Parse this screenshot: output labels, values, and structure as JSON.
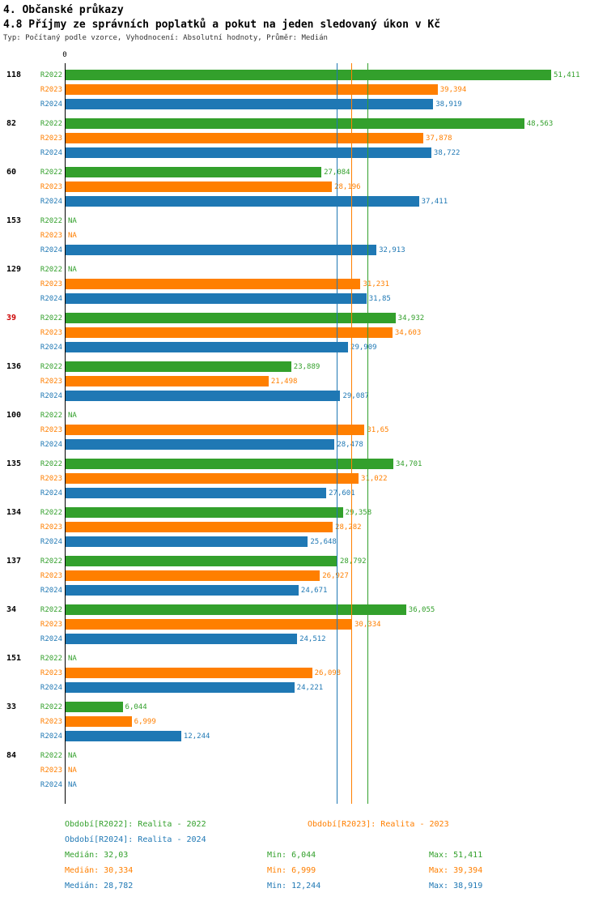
{
  "header": {
    "title": "4. Občanské průkazy",
    "subtitle": "4.8 Příjmy ze správních poplatků a pokut na jeden sledovaný úkon v Kč",
    "meta": "Typ: Počítaný podle vzorce, Vyhodnocení: Absolutní hodnoty, Průměr: Medián"
  },
  "chart_data": {
    "type": "bar",
    "orientation": "horizontal",
    "title": "4.8 Příjmy ze správních poplatků a pokut na jeden sledovaný úkon v Kč",
    "unit": "Kč",
    "axis_zero_label": "0",
    "x_max": 51.411,
    "series_labels": [
      "R2022",
      "R2023",
      "R2024"
    ],
    "colors": {
      "R2022": "#33a02c",
      "R2023": "#ff7f00",
      "R2024": "#1f78b4",
      "highlight": "#cc0000",
      "axis": "#000000"
    },
    "medians": [
      {
        "series": "R2022",
        "value": 32.03
      },
      {
        "series": "R2023",
        "value": 30.334
      },
      {
        "series": "R2024",
        "value": 28.782
      }
    ],
    "groups": [
      {
        "id": "118",
        "highlight": false,
        "bars": [
          {
            "series": "R2022",
            "value": 51.411,
            "label": "51,411"
          },
          {
            "series": "R2023",
            "value": 39.394,
            "label": "39,394"
          },
          {
            "series": "R2024",
            "value": 38.919,
            "label": "38,919"
          }
        ]
      },
      {
        "id": "82",
        "highlight": false,
        "bars": [
          {
            "series": "R2022",
            "value": 48.563,
            "label": "48,563"
          },
          {
            "series": "R2023",
            "value": 37.878,
            "label": "37,878"
          },
          {
            "series": "R2024",
            "value": 38.722,
            "label": "38,722"
          }
        ]
      },
      {
        "id": "60",
        "highlight": false,
        "bars": [
          {
            "series": "R2022",
            "value": 27.084,
            "label": "27,084"
          },
          {
            "series": "R2023",
            "value": 28.196,
            "label": "28,196"
          },
          {
            "series": "R2024",
            "value": 37.411,
            "label": "37,411"
          }
        ]
      },
      {
        "id": "153",
        "highlight": false,
        "bars": [
          {
            "series": "R2022",
            "value": null,
            "label": "NA"
          },
          {
            "series": "R2023",
            "value": null,
            "label": "NA"
          },
          {
            "series": "R2024",
            "value": 32.913,
            "label": "32,913"
          }
        ]
      },
      {
        "id": "129",
        "highlight": false,
        "bars": [
          {
            "series": "R2022",
            "value": null,
            "label": "NA"
          },
          {
            "series": "R2023",
            "value": 31.231,
            "label": "31,231"
          },
          {
            "series": "R2024",
            "value": 31.85,
            "label": "31,85"
          }
        ]
      },
      {
        "id": "39",
        "highlight": true,
        "bars": [
          {
            "series": "R2022",
            "value": 34.932,
            "label": "34,932"
          },
          {
            "series": "R2023",
            "value": 34.603,
            "label": "34,603"
          },
          {
            "series": "R2024",
            "value": 29.909,
            "label": "29,909"
          }
        ]
      },
      {
        "id": "136",
        "highlight": false,
        "bars": [
          {
            "series": "R2022",
            "value": 23.889,
            "label": "23,889"
          },
          {
            "series": "R2023",
            "value": 21.498,
            "label": "21,498"
          },
          {
            "series": "R2024",
            "value": 29.087,
            "label": "29,087"
          }
        ]
      },
      {
        "id": "100",
        "highlight": false,
        "bars": [
          {
            "series": "R2022",
            "value": null,
            "label": "NA"
          },
          {
            "series": "R2023",
            "value": 31.65,
            "label": "31,65"
          },
          {
            "series": "R2024",
            "value": 28.478,
            "label": "28,478"
          }
        ]
      },
      {
        "id": "135",
        "highlight": false,
        "bars": [
          {
            "series": "R2022",
            "value": 34.701,
            "label": "34,701"
          },
          {
            "series": "R2023",
            "value": 31.022,
            "label": "31,022"
          },
          {
            "series": "R2024",
            "value": 27.601,
            "label": "27,601"
          }
        ]
      },
      {
        "id": "134",
        "highlight": false,
        "bars": [
          {
            "series": "R2022",
            "value": 29.358,
            "label": "29,358"
          },
          {
            "series": "R2023",
            "value": 28.282,
            "label": "28,282"
          },
          {
            "series": "R2024",
            "value": 25.648,
            "label": "25,648"
          }
        ]
      },
      {
        "id": "137",
        "highlight": false,
        "bars": [
          {
            "series": "R2022",
            "value": 28.792,
            "label": "28,792"
          },
          {
            "series": "R2023",
            "value": 26.927,
            "label": "26,927"
          },
          {
            "series": "R2024",
            "value": 24.671,
            "label": "24,671"
          }
        ]
      },
      {
        "id": "34",
        "highlight": false,
        "bars": [
          {
            "series": "R2022",
            "value": 36.055,
            "label": "36,055"
          },
          {
            "series": "R2023",
            "value": 30.334,
            "label": "30,334"
          },
          {
            "series": "R2024",
            "value": 24.512,
            "label": "24,512"
          }
        ]
      },
      {
        "id": "151",
        "highlight": false,
        "bars": [
          {
            "series": "R2022",
            "value": null,
            "label": "NA"
          },
          {
            "series": "R2023",
            "value": 26.098,
            "label": "26,098"
          },
          {
            "series": "R2024",
            "value": 24.221,
            "label": "24,221"
          }
        ]
      },
      {
        "id": "33",
        "highlight": false,
        "bars": [
          {
            "series": "R2022",
            "value": 6.044,
            "label": "6,044"
          },
          {
            "series": "R2023",
            "value": 6.999,
            "label": "6,999"
          },
          {
            "series": "R2024",
            "value": 12.244,
            "label": "12,244"
          }
        ]
      },
      {
        "id": "84",
        "highlight": false,
        "bars": [
          {
            "series": "R2022",
            "value": null,
            "label": "NA"
          },
          {
            "series": "R2023",
            "value": null,
            "label": "NA"
          },
          {
            "series": "R2024",
            "value": null,
            "label": "NA"
          }
        ]
      }
    ],
    "legend": [
      {
        "series": "R2022",
        "text": "Období[R2022]: Realita - 2022"
      },
      {
        "series": "R2023",
        "text": "Období[R2023]: Realita - 2023"
      },
      {
        "series": "R2024",
        "text": "Období[R2024]: Realita - 2024"
      }
    ],
    "stats": [
      {
        "series": "R2022",
        "median": "Medián: 32,03",
        "min": "Min: 6,044",
        "max": "Max: 51,411"
      },
      {
        "series": "R2023",
        "median": "Medián: 30,334",
        "min": "Min: 6,999",
        "max": "Max: 39,394"
      },
      {
        "series": "R2024",
        "median": "Medián: 28,782",
        "min": "Min: 12,244",
        "max": "Max: 38,919"
      }
    ]
  }
}
